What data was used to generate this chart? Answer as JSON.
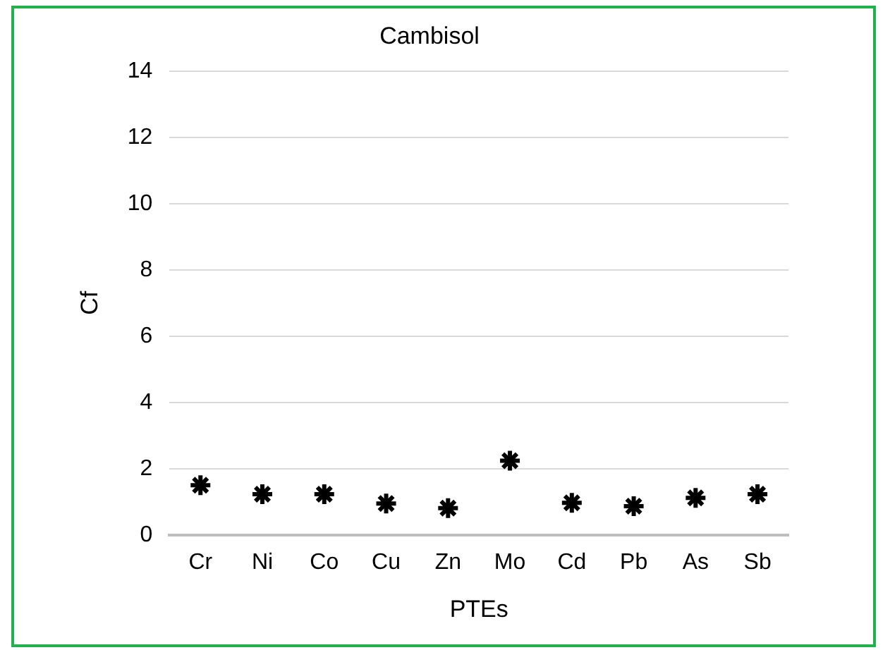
{
  "chart_data": {
    "type": "scatter",
    "title": "Cambisol",
    "xlabel": "PTEs",
    "ylabel": "Cf",
    "categories": [
      "Cr",
      "Ni",
      "Co",
      "Cu",
      "Zn",
      "Mo",
      "Cd",
      "Pb",
      "As",
      "Sb"
    ],
    "series": [
      {
        "color": "#000000",
        "values": [
          1.5,
          1.23,
          1.23,
          0.95,
          0.81,
          2.24,
          0.97,
          0.87,
          1.12,
          1.23
        ]
      }
    ],
    "ylim": [
      0,
      14
    ],
    "yticks": [
      0,
      2,
      4,
      6,
      8,
      10,
      12,
      14
    ],
    "grid": "y",
    "legend": false,
    "marker": "cross"
  }
}
